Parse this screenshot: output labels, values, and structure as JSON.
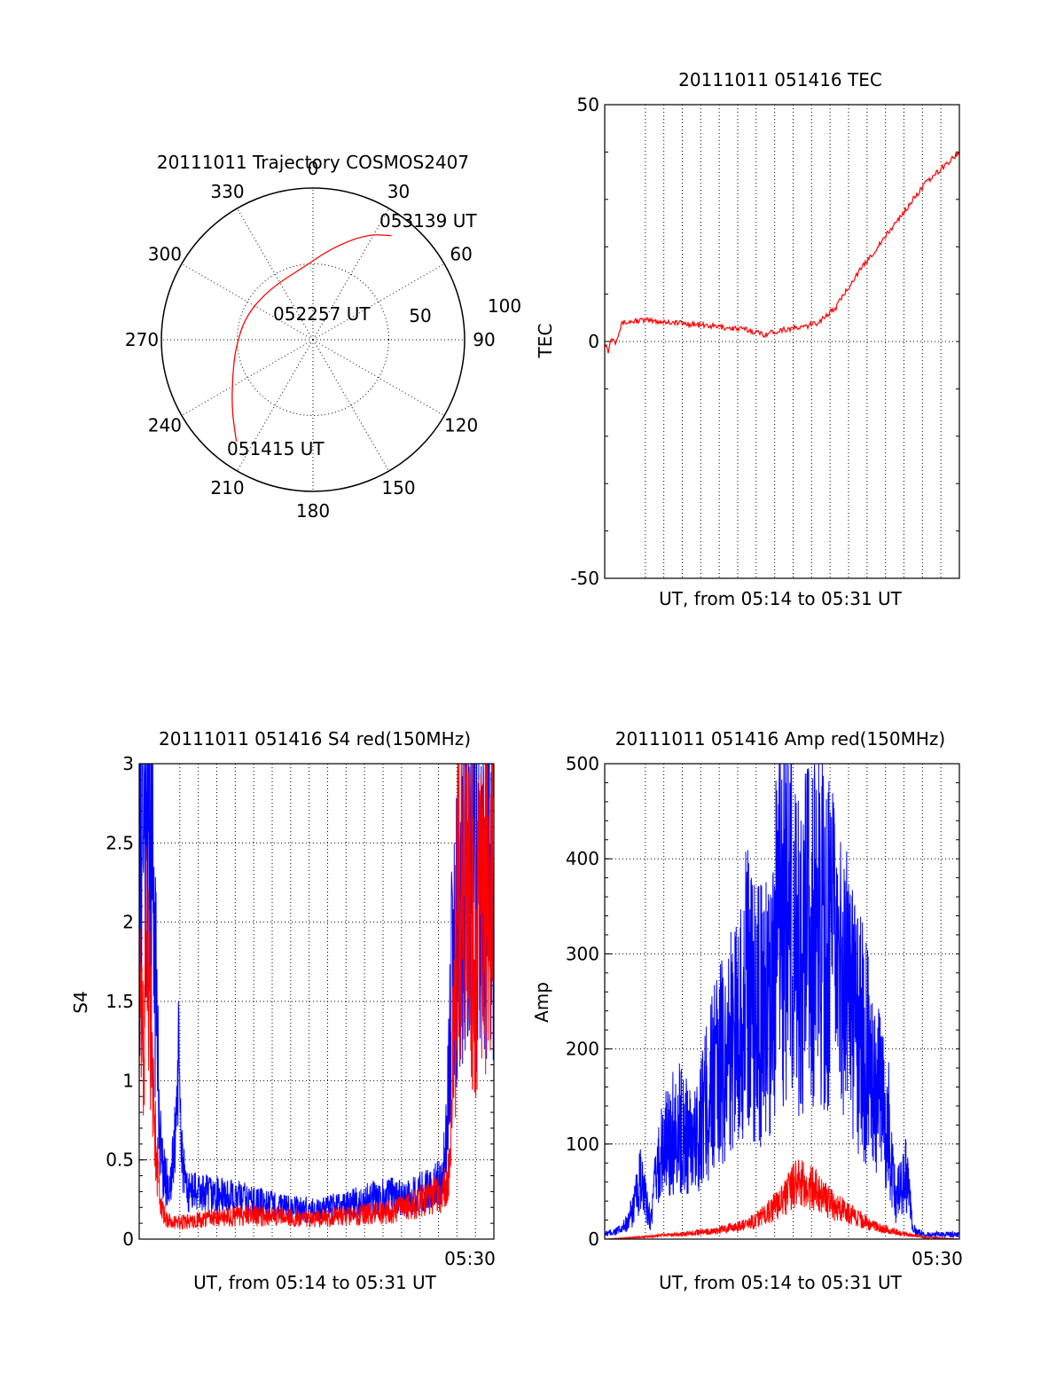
{
  "colors": {
    "red": "#ff0000",
    "blue": "#0000ff",
    "axis": "#000000",
    "background": "#ffffff"
  },
  "chart_data": [
    {
      "type": "polar",
      "title": "20111011 Trajectory COSMOS2407",
      "angle_ticks": [
        "0",
        "30",
        "60",
        "90",
        "120",
        "150",
        "180",
        "210",
        "240",
        "270",
        "300",
        "330"
      ],
      "radial_ticks": [
        "50",
        "100"
      ],
      "radial_range": [
        0,
        100
      ],
      "annotations": [
        "053139 UT",
        "052257 UT",
        "051415 UT"
      ],
      "series": [
        {
          "color": "red",
          "points": [
            {
              "az": 217,
              "r": 84
            },
            {
              "az": 230,
              "r": 70
            },
            {
              "az": 248,
              "r": 57
            },
            {
              "az": 265,
              "r": 51
            },
            {
              "az": 290,
              "r": 47
            },
            {
              "az": 320,
              "r": 44
            },
            {
              "az": 352,
              "r": 48
            },
            {
              "az": 12,
              "r": 62
            },
            {
              "az": 27,
              "r": 78
            },
            {
              "az": 37,
              "r": 86
            }
          ]
        }
      ],
      "grid": true
    },
    {
      "type": "line",
      "title": "20111011 051416 TEC",
      "ylabel": "TEC",
      "xlabel": "UT, from 05:14 to 05:31 UT",
      "ylim": [
        -50,
        50
      ],
      "yticks": [
        "-50",
        "0",
        "50"
      ],
      "xlim": [
        0,
        1000
      ],
      "series": [
        {
          "color": "red",
          "x": [
            0,
            10,
            20,
            30,
            50,
            60,
            100,
            200,
            400,
            450,
            500,
            560,
            600,
            650,
            700,
            750,
            800,
            850,
            880,
            900,
            1000
          ],
          "y": [
            0,
            -2,
            1,
            0,
            4,
            4,
            4.5,
            4,
            2.5,
            1.5,
            2.5,
            3,
            4,
            7,
            13,
            18,
            23,
            28,
            31,
            33,
            40
          ]
        }
      ],
      "grid": true
    },
    {
      "type": "line",
      "title": "20111011 051416 S4 red(150MHz)",
      "ylabel": "S4",
      "xlabel": "UT, from 05:14 to 05:31 UT",
      "ylim": [
        0,
        3
      ],
      "yticks": [
        "0",
        "0.5",
        "1",
        "1.5",
        "2",
        "2.5",
        "3"
      ],
      "xtick_labels": [
        "05:30"
      ],
      "xlim": [
        0,
        1000
      ],
      "series": [
        {
          "color": "blue",
          "x": [
            0,
            20,
            40,
            50,
            60,
            70,
            80,
            90,
            100,
            110,
            120,
            130,
            150,
            200,
            300,
            400,
            500,
            600,
            700,
            750,
            800,
            850,
            860,
            870,
            880,
            890,
            920,
            950,
            1000
          ],
          "y": [
            2.5,
            3.0,
            2.4,
            1.3,
            0.6,
            0.4,
            0.35,
            0.35,
            0.6,
            1.1,
            0.6,
            0.3,
            0.3,
            0.28,
            0.25,
            0.2,
            0.18,
            0.22,
            0.28,
            0.25,
            0.3,
            0.35,
            0.5,
            0.9,
            1.5,
            2.0,
            2.6,
            2.3,
            2.5
          ]
        },
        {
          "color": "red",
          "x": [
            0,
            10,
            20,
            40,
            60,
            80,
            100,
            150,
            200,
            300,
            400,
            500,
            600,
            700,
            750,
            800,
            850,
            870,
            880,
            890,
            900,
            920,
            950,
            1000
          ],
          "y": [
            1.5,
            1.2,
            2.0,
            0.8,
            0.2,
            0.12,
            0.1,
            0.12,
            0.13,
            0.15,
            0.14,
            0.13,
            0.15,
            0.17,
            0.2,
            0.25,
            0.3,
            0.35,
            0.8,
            1.6,
            2.2,
            2.5,
            1.8,
            2.6
          ]
        }
      ],
      "grid": true
    },
    {
      "type": "line",
      "title": "20111011 051416 Amp red(150MHz)",
      "ylabel": "Amp",
      "xlabel": "UT, from 05:14 to 05:31 UT",
      "ylim": [
        0,
        500
      ],
      "yticks": [
        "0",
        "100",
        "200",
        "300",
        "400",
        "500"
      ],
      "xtick_labels": [
        "05:30"
      ],
      "xlim": [
        0,
        1000
      ],
      "series": [
        {
          "color": "blue",
          "x": [
            0,
            50,
            80,
            100,
            130,
            150,
            200,
            250,
            300,
            350,
            400,
            450,
            500,
            550,
            600,
            650,
            700,
            750,
            800,
            820,
            850,
            870,
            900,
            1000
          ],
          "y": [
            5,
            10,
            30,
            60,
            20,
            80,
            120,
            100,
            160,
            200,
            260,
            230,
            350,
            300,
            330,
            290,
            240,
            180,
            120,
            40,
            70,
            10,
            5,
            5
          ]
        },
        {
          "color": "red",
          "x": [
            0,
            100,
            200,
            300,
            400,
            450,
            500,
            530,
            550,
            600,
            650,
            700,
            750,
            800,
            850,
            900,
            1000
          ],
          "y": [
            0,
            2,
            5,
            8,
            15,
            25,
            40,
            55,
            60,
            50,
            35,
            25,
            15,
            10,
            5,
            2,
            0
          ]
        }
      ],
      "grid": true
    }
  ]
}
